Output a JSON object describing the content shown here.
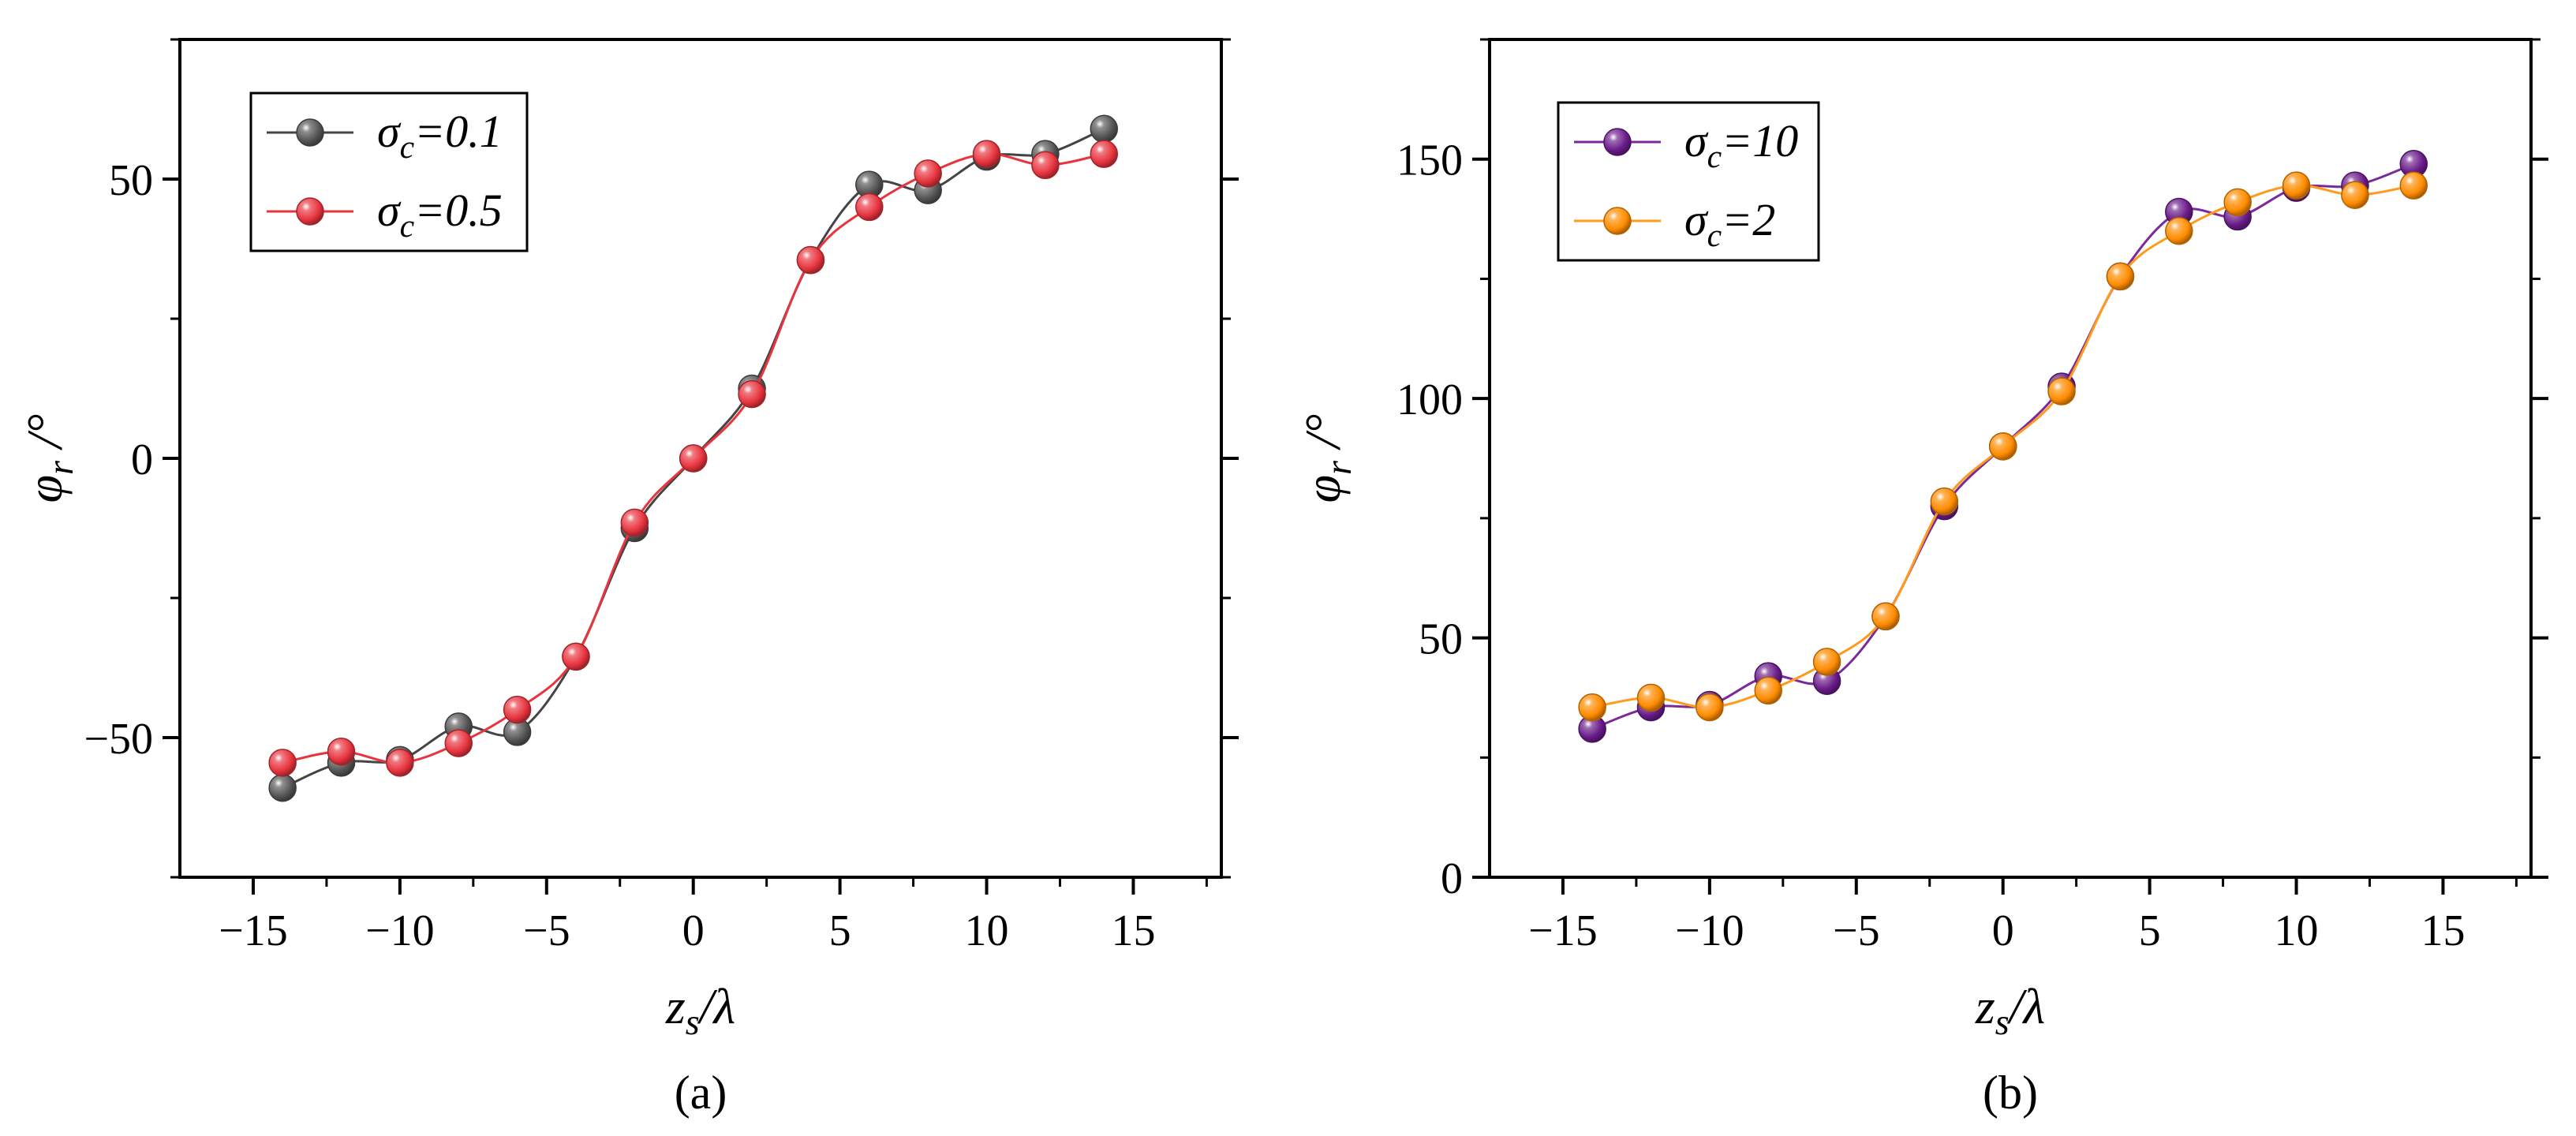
{
  "chart_data": [
    {
      "type": "line",
      "panel_label": "(a)",
      "xlim": [
        -17.5,
        18
      ],
      "ylim": [
        -75,
        75
      ],
      "xticks": [
        -15,
        -10,
        -5,
        0,
        5,
        10,
        15
      ],
      "xtick_labels": [
        "−15",
        "−10",
        "−5",
        "0",
        "5",
        "10",
        "15"
      ],
      "yticks": [
        -50,
        0,
        50
      ],
      "ytick_labels": [
        "−50",
        "0",
        "50"
      ],
      "xlabel": {
        "main": "z",
        "sub": "s",
        "rest": "/λ"
      },
      "ylabel": {
        "main": "φ",
        "sub": "r",
        "rest": " /°"
      },
      "legend": [
        {
          "main": "σ",
          "sub": "c",
          "rest": "=0.1"
        },
        {
          "main": "σ",
          "sub": "c",
          "rest": "=0.5"
        }
      ],
      "series": [
        {
          "name": "σc=0.1",
          "color": "#555555",
          "line_color": "#444444",
          "x": [
            -14,
            -12,
            -10,
            -8,
            -6,
            -4,
            -2,
            0,
            2,
            4,
            6,
            8,
            10,
            12,
            14
          ],
          "values": [
            -59,
            -54.5,
            -54,
            -48,
            -49,
            -35.5,
            -12.5,
            0,
            12.5,
            35.5,
            49,
            48,
            54,
            54.5,
            59
          ]
        },
        {
          "name": "σc=0.5",
          "color": "#e8343e",
          "line_color": "#e8343e",
          "x": [
            -14,
            -12,
            -10,
            -8,
            -6,
            -4,
            -2,
            0,
            2,
            4,
            6,
            8,
            10,
            12,
            14
          ],
          "values": [
            -54.5,
            -52.5,
            -54.5,
            -51,
            -45,
            -35.5,
            -11.5,
            0,
            11.5,
            35.5,
            45,
            51,
            54.5,
            52.5,
            54.5
          ]
        }
      ]
    },
    {
      "type": "line",
      "panel_label": "(b)",
      "xlim": [
        -17.5,
        18
      ],
      "ylim": [
        0,
        175
      ],
      "xticks": [
        -15,
        -10,
        -5,
        0,
        5,
        10,
        15
      ],
      "xtick_labels": [
        "−15",
        "−10",
        "−5",
        "0",
        "5",
        "10",
        "15"
      ],
      "yticks": [
        0,
        50,
        100,
        150
      ],
      "ytick_labels": [
        "0",
        "50",
        "100",
        "150"
      ],
      "xlabel": {
        "main": "z",
        "sub": "s",
        "rest": "/λ"
      },
      "ylabel": {
        "main": "φ",
        "sub": "r",
        "rest": " /°"
      },
      "legend": [
        {
          "main": "σ",
          "sub": "c",
          "rest": "=10"
        },
        {
          "main": "σ",
          "sub": "c",
          "rest": "=2"
        }
      ],
      "series": [
        {
          "name": "σc=10",
          "color": "#6a1b8a",
          "line_color": "#7b2a9a",
          "x": [
            -14,
            -12,
            -10,
            -8,
            -6,
            -4,
            -2,
            0,
            2,
            4,
            6,
            8,
            10,
            12,
            14
          ],
          "values": [
            31,
            35.5,
            36,
            42,
            41,
            54.5,
            77.5,
            90,
            102.5,
            125.5,
            139,
            138,
            144,
            144.5,
            149
          ]
        },
        {
          "name": "σc=2",
          "color": "#ff8c00",
          "line_color": "#ff9a1a",
          "x": [
            -14,
            -12,
            -10,
            -8,
            -6,
            -4,
            -2,
            0,
            2,
            4,
            6,
            8,
            10,
            12,
            14
          ],
          "values": [
            35.5,
            37.5,
            35.5,
            39,
            45,
            54.5,
            78.5,
            90,
            101.5,
            125.5,
            135,
            141,
            144.5,
            142.5,
            144.5
          ]
        }
      ]
    }
  ]
}
